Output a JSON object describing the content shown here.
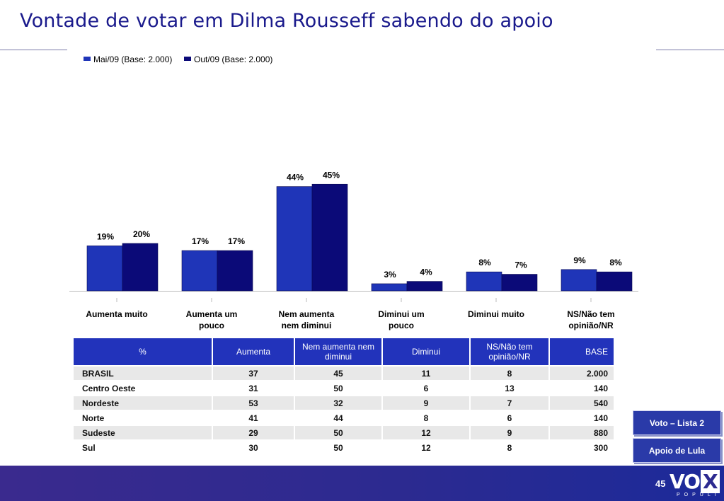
{
  "page": {
    "title": "Vontade de votar em Dilma Rousseff sabendo do apoio",
    "page_number": "45",
    "logo_text": "VO",
    "logo_x": "X",
    "logo_sub": "POPULI"
  },
  "side_buttons": [
    "Voto – Lista 2",
    "Apoio de Lula"
  ],
  "colors": {
    "series1": "#1f35b8",
    "series2": "#0b0a78",
    "header": "#2233bb",
    "title": "#1a1a8c"
  },
  "chart_data": {
    "type": "bar",
    "legend": "top-left",
    "categories": [
      [
        "Aumenta muito"
      ],
      [
        "Aumenta um",
        "pouco"
      ],
      [
        "Nem aumenta",
        "nem diminui"
      ],
      [
        "Diminui um",
        "pouco"
      ],
      [
        "Diminui muito"
      ],
      [
        "NS/Não tem",
        "opinião/NR"
      ]
    ],
    "series": [
      {
        "name": "Mai/09 (Base: 2.000)",
        "values": [
          19,
          17,
          44,
          3,
          8,
          9
        ]
      },
      {
        "name": "Out/09 (Base: 2.000)",
        "values": [
          20,
          17,
          45,
          4,
          7,
          8
        ]
      }
    ],
    "value_suffix": "%",
    "ylim": [
      0,
      50
    ]
  },
  "table": {
    "headers": [
      "%",
      "Aumenta",
      "Nem aumenta nem diminui",
      "Diminui",
      "NS/Não tem opinião/NR",
      "BASE"
    ],
    "rows": [
      [
        "BRASIL",
        "37",
        "45",
        "11",
        "8",
        "2.000"
      ],
      [
        "Centro Oeste",
        "31",
        "50",
        "6",
        "13",
        "140"
      ],
      [
        "Nordeste",
        "53",
        "32",
        "9",
        "7",
        "540"
      ],
      [
        "Norte",
        "41",
        "44",
        "8",
        "6",
        "140"
      ],
      [
        "Sudeste",
        "29",
        "50",
        "12",
        "9",
        "880"
      ],
      [
        "Sul",
        "30",
        "50",
        "12",
        "8",
        "300"
      ]
    ]
  }
}
